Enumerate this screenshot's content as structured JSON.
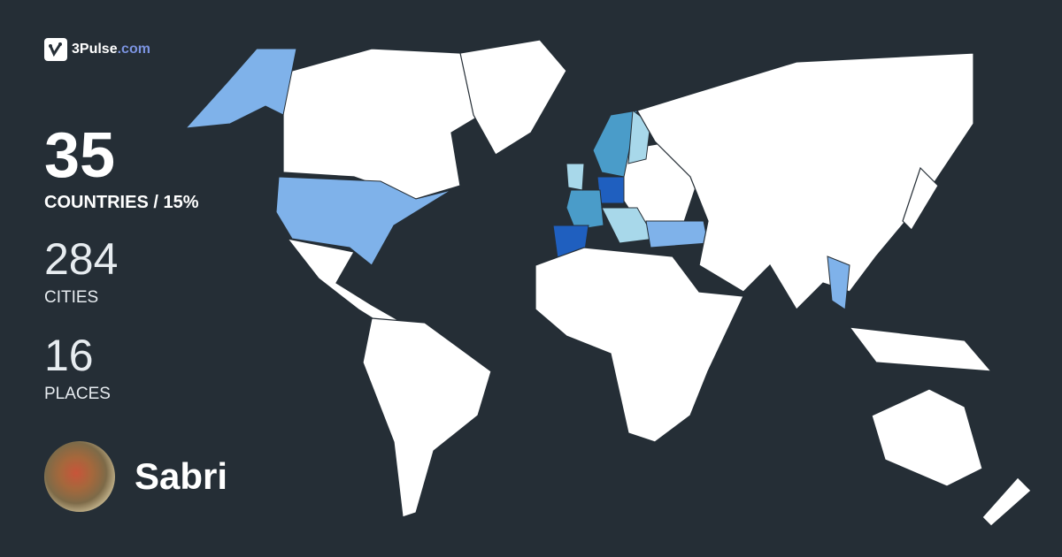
{
  "brand": {
    "name": "3Pulse",
    "domain": ".com",
    "icon": "pulse-check-icon"
  },
  "stats": {
    "countries": {
      "value": "35",
      "label": "COUNTRIES / 15%"
    },
    "cities": {
      "value": "284",
      "label": "CITIES"
    },
    "places": {
      "value": "16",
      "label": "PLACES"
    }
  },
  "user": {
    "name": "Sabri"
  },
  "colors": {
    "background": "#252e36",
    "land": "#ffffff",
    "visited_light": "#a8d8ea",
    "visited_mid": "#7fb2ea",
    "visited_teal": "#4a9cc9",
    "visited_dark": "#1f5fbf",
    "brand_accent": "#7b93e0"
  }
}
